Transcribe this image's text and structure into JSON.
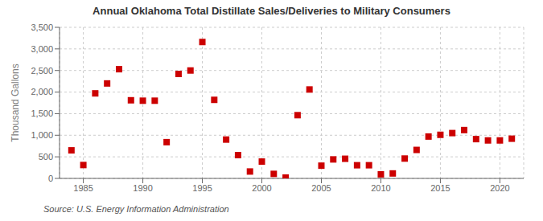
{
  "chart_data": {
    "type": "scatter",
    "title": "Annual Oklahoma Total Distillate Sales/Deliveries to Military Consumers",
    "y_label": "Thousand Gallons",
    "annotations": [
      "Source: U.S. Energy Information Administration"
    ],
    "color": "#cc0000",
    "marker": "square",
    "grid": true,
    "xlim": [
      1983,
      2022
    ],
    "ylim": [
      0,
      3500
    ],
    "xticks": [
      1985,
      1990,
      1995,
      2000,
      2005,
      2010,
      2015,
      2020
    ],
    "yticks": [
      0,
      500,
      {
        "value": 1000,
        "label": "1,000"
      },
      {
        "value": 1500,
        "label": "1,500"
      },
      {
        "value": 2000,
        "label": "2,000"
      },
      {
        "value": 2500,
        "label": "2,500"
      },
      {
        "value": 3000,
        "label": "3,000"
      },
      {
        "value": 3500,
        "label": "3,500"
      }
    ],
    "x": [
      1984,
      1985,
      1986,
      1987,
      1988,
      1989,
      1990,
      1991,
      1992,
      1993,
      1994,
      1995,
      1996,
      1997,
      1998,
      1999,
      2000,
      2001,
      2002,
      2003,
      2004,
      2005,
      2006,
      2007,
      2008,
      2009,
      2010,
      2011,
      2012,
      2013,
      2014,
      2015,
      2016,
      2017,
      2018,
      2019,
      2020,
      2021
    ],
    "values": [
      650,
      310,
      1970,
      2200,
      2530,
      1810,
      1800,
      1800,
      840,
      2420,
      2500,
      3160,
      1820,
      900,
      540,
      160,
      390,
      105,
      20,
      1465,
      2060,
      295,
      440,
      455,
      305,
      305,
      95,
      115,
      460,
      660,
      970,
      1010,
      1050,
      1120,
      910,
      880,
      880,
      920
    ]
  }
}
